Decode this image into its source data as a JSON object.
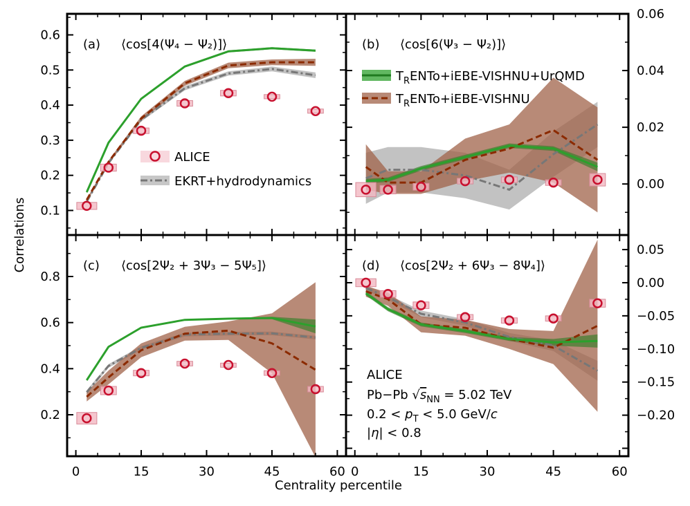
{
  "figure": {
    "ylabel": "Correlations",
    "xlabel": "Centrality percentile"
  },
  "colors": {
    "alice": "#c8102e",
    "alice_box": "#f2b8c2",
    "trento_urqmd": "#2ca02c",
    "trento": "#8b2a00",
    "trento_band": "#a0634a",
    "ekrt": "#777777",
    "ekrt_band": "#999999"
  },
  "legend_left": {
    "alice": "ALICE",
    "ekrt": "EKRT+hydrodynamics"
  },
  "legend_right": {
    "urqmd": "TRENTo+iEBE-VISHNU+UrQMD",
    "trento": "TRENTo+iEBE-VISHNU"
  },
  "info": {
    "experiment": "ALICE",
    "system": "Pb−Pb  √s_NN = 5.02 TeV",
    "pt": "0.2 < p_T < 5.0 GeV/c",
    "eta": "|η| < 0.8"
  },
  "chart_data": [
    {
      "panel": "a",
      "type": "line",
      "label": "(a)",
      "title": "⟨cos[4(Ψ₄ − Ψ₂)]⟩",
      "xlim": [
        -2,
        62
      ],
      "ylim": [
        0.03,
        0.66
      ],
      "xticks": [
        0,
        15,
        30,
        45,
        60
      ],
      "yticks": [
        0.1,
        0.2,
        0.3,
        0.4,
        0.5,
        0.6
      ],
      "yaxis": "left",
      "alice": {
        "x": [
          2.5,
          7.5,
          15,
          25,
          35,
          45,
          55
        ],
        "y": [
          0.113,
          0.222,
          0.327,
          0.405,
          0.434,
          0.424,
          0.383
        ],
        "syst": [
          0.01,
          0.01,
          0.008,
          0.008,
          0.008,
          0.006,
          0.006
        ]
      },
      "series": [
        {
          "name": "TRENTo+iEBE-VISHNU+UrQMD",
          "x": [
            2.5,
            7.5,
            15,
            25,
            35,
            45,
            55
          ],
          "y": [
            0.152,
            0.293,
            0.418,
            0.51,
            0.553,
            0.562,
            0.555
          ],
          "band": [
            0.003,
            0.003,
            0.003,
            0.003,
            0.003,
            0.003,
            0.003
          ]
        },
        {
          "name": "TRENTo+iEBE-VISHNU",
          "x": [
            2.5,
            7.5,
            15,
            25,
            35,
            45,
            55
          ],
          "y": [
            0.13,
            0.238,
            0.362,
            0.462,
            0.513,
            0.522,
            0.522
          ],
          "band": [
            0.003,
            0.004,
            0.006,
            0.007,
            0.008,
            0.008,
            0.01
          ]
        },
        {
          "name": "EKRT+hydrodynamics",
          "x": [
            2.5,
            7.5,
            15,
            25,
            35,
            45,
            55
          ],
          "y": [
            0.125,
            0.235,
            0.358,
            0.448,
            0.49,
            0.503,
            0.485
          ],
          "band": [
            0.004,
            0.004,
            0.005,
            0.006,
            0.006,
            0.007,
            0.008
          ]
        }
      ]
    },
    {
      "panel": "b",
      "type": "line",
      "label": "(b)",
      "title": "⟨cos[6(Ψ₃ − Ψ₂)]⟩",
      "xlim": [
        -2,
        62
      ],
      "ylim": [
        -0.018,
        0.06
      ],
      "xticks": [
        0,
        15,
        30,
        45,
        60
      ],
      "yticks": [
        0.0,
        0.02,
        0.04,
        0.06
      ],
      "yaxis": "right",
      "alice": {
        "x": [
          2.5,
          7.5,
          15,
          25,
          35,
          45,
          55
        ],
        "y": [
          -0.002,
          -0.002,
          -0.001,
          0.001,
          0.0015,
          0.0005,
          0.0015
        ],
        "syst": [
          0.0025,
          0.0015,
          0.0012,
          0.001,
          0.001,
          0.001,
          0.0022
        ]
      },
      "series": [
        {
          "name": "TRENTo+iEBE-VISHNU+UrQMD",
          "x": [
            2.5,
            7.5,
            15,
            25,
            35,
            45,
            55
          ],
          "y": [
            0.001,
            0.0015,
            0.0055,
            0.0095,
            0.0135,
            0.0125,
            0.006
          ],
          "band": [
            0.0008,
            0.0008,
            0.0008,
            0.0008,
            0.0008,
            0.0008,
            0.0015
          ]
        },
        {
          "name": "TRENTo+iEBE-VISHNU",
          "x": [
            2.5,
            7.5,
            15,
            25,
            35,
            45,
            55
          ],
          "y": [
            0.006,
            0.0005,
            0.0005,
            0.0085,
            0.0125,
            0.019,
            0.0085
          ],
          "band": [
            0.008,
            0.004,
            0.004,
            0.0075,
            0.0085,
            0.0185,
            0.0185
          ]
        },
        {
          "name": "EKRT+hydrodynamics",
          "x": [
            2.5,
            7.5,
            15,
            25,
            35,
            45,
            55
          ],
          "y": [
            0.002,
            0.005,
            0.005,
            0.003,
            -0.002,
            0.0105,
            0.021
          ],
          "band": [
            0.009,
            0.008,
            0.008,
            0.008,
            0.007,
            0.008,
            0.008
          ]
        }
      ]
    },
    {
      "panel": "c",
      "type": "line",
      "label": "(c)",
      "title": "⟨cos[2Ψ₂ + 3Ψ₃ − 5Ψ₅]⟩",
      "xlim": [
        -2,
        62
      ],
      "ylim": [
        0.02,
        0.98
      ],
      "xticks": [
        0,
        15,
        30,
        45,
        60
      ],
      "yticks": [
        0.2,
        0.4,
        0.6,
        0.8
      ],
      "yaxis": "left",
      "alice": {
        "x": [
          2.5,
          7.5,
          15,
          25,
          35,
          45,
          55
        ],
        "y": [
          0.185,
          0.305,
          0.381,
          0.422,
          0.416,
          0.381,
          0.311
        ],
        "syst": [
          0.025,
          0.018,
          0.012,
          0.01,
          0.008,
          0.01,
          0.012
        ]
      },
      "series": [
        {
          "name": "TRENTo+iEBE-VISHNU+UrQMD",
          "x": [
            2.5,
            7.5,
            15,
            25,
            35,
            45,
            55
          ],
          "y": [
            0.35,
            0.495,
            0.578,
            0.612,
            0.617,
            0.62,
            0.583
          ],
          "band": [
            0.003,
            0.003,
            0.003,
            0.003,
            0.003,
            0.005,
            0.03
          ]
        },
        {
          "name": "TRENTo+iEBE-VISHNU",
          "x": [
            2.5,
            7.5,
            15,
            25,
            35,
            45,
            55
          ],
          "y": [
            0.278,
            0.362,
            0.48,
            0.552,
            0.565,
            0.51,
            0.395
          ],
          "band": [
            0.02,
            0.03,
            0.03,
            0.03,
            0.04,
            0.13,
            0.38
          ]
        },
        {
          "name": "EKRT+hydrodynamics",
          "x": [
            2.5,
            7.5,
            15,
            25,
            35,
            45,
            55
          ],
          "y": [
            0.298,
            0.412,
            0.49,
            0.548,
            0.552,
            0.553,
            0.535
          ],
          "band": [
            0.008,
            0.008,
            0.008,
            0.008,
            0.008,
            0.008,
            0.008
          ]
        }
      ]
    },
    {
      "panel": "d",
      "type": "line",
      "label": "(d)",
      "title": "⟨cos[2Ψ₂ + 6Ψ₃ − 8Ψ₄]⟩",
      "xlim": [
        -2,
        62
      ],
      "ylim": [
        -0.262,
        0.072
      ],
      "xticks": [
        0,
        15,
        30,
        45,
        60
      ],
      "yticks": [
        -0.2,
        -0.15,
        -0.1,
        -0.05,
        0.0,
        0.05
      ],
      "ytick_labels": [
        "−0.20",
        "−0.15",
        "−0.10",
        "−0.05",
        "0.00",
        "0.05"
      ],
      "yaxis": "right",
      "alice": {
        "x": [
          2.5,
          7.5,
          15,
          25,
          35,
          45,
          55
        ],
        "y": [
          0.0,
          -0.017,
          -0.034,
          -0.052,
          -0.057,
          -0.054,
          -0.031
        ],
        "syst": [
          0.006,
          0.005,
          0.005,
          0.004,
          0.004,
          0.004,
          0.006
        ]
      },
      "series": [
        {
          "name": "TRENTo+iEBE-VISHNU+UrQMD",
          "x": [
            2.5,
            7.5,
            15,
            25,
            35,
            45,
            55
          ],
          "y": [
            -0.016,
            -0.04,
            -0.063,
            -0.073,
            -0.085,
            -0.09,
            -0.088
          ],
          "band": [
            0.003,
            0.003,
            0.003,
            0.003,
            0.003,
            0.005,
            0.01
          ]
        },
        {
          "name": "TRENTo+iEBE-VISHNU",
          "x": [
            2.5,
            7.5,
            15,
            25,
            35,
            45,
            55
          ],
          "y": [
            -0.013,
            -0.025,
            -0.063,
            -0.068,
            -0.085,
            -0.098,
            -0.065
          ],
          "band": [
            0.008,
            0.01,
            0.012,
            0.012,
            0.015,
            0.025,
            0.13
          ]
        },
        {
          "name": "EKRT+hydrodynamics",
          "x": [
            2.5,
            7.5,
            15,
            25,
            35,
            45,
            55
          ],
          "y": [
            -0.008,
            -0.022,
            -0.047,
            -0.06,
            -0.082,
            -0.095,
            -0.133
          ],
          "band": [
            0.004,
            0.004,
            0.005,
            0.005,
            0.006,
            0.008,
            0.015
          ]
        }
      ]
    }
  ]
}
